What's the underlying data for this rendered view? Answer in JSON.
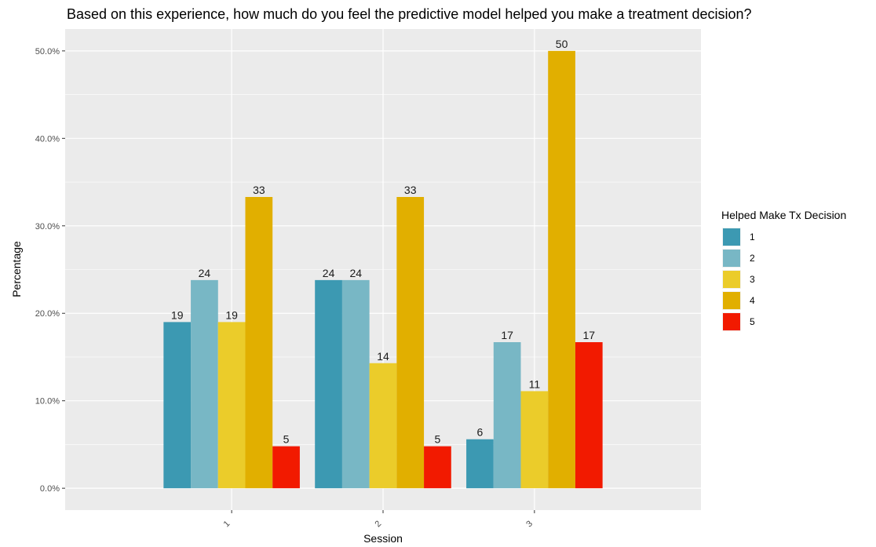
{
  "chart_data": {
    "type": "bar",
    "title": "Based on this experience, how much do you feel the predictive model helped you make a treatment decision?",
    "xlabel": "Session",
    "ylabel": "Percentage",
    "categories": [
      "1",
      "2",
      "3"
    ],
    "ylim": [
      -0.025,
      0.525
    ],
    "yticks": [
      0.0,
      0.1,
      0.2,
      0.3,
      0.4,
      0.5
    ],
    "ytick_labels": [
      "0.0%",
      "10.0%",
      "20.0%",
      "30.0%",
      "40.0%",
      "50.0%"
    ],
    "grid": true,
    "legend_title": "Helped Make Tx Decision",
    "legend_position": "right",
    "series": [
      {
        "name": "1",
        "color": "#3C99B2",
        "values": [
          0.19,
          0.238,
          0.056
        ],
        "labels": [
          "19",
          "24",
          "6"
        ]
      },
      {
        "name": "2",
        "color": "#78B7C5",
        "values": [
          0.238,
          0.238,
          0.167
        ],
        "labels": [
          "24",
          "24",
          "17"
        ]
      },
      {
        "name": "3",
        "color": "#EBCC2A",
        "values": [
          0.19,
          0.143,
          0.111
        ],
        "labels": [
          "19",
          "14",
          "11"
        ]
      },
      {
        "name": "4",
        "color": "#E1AF00",
        "values": [
          0.333,
          0.333,
          0.5
        ],
        "labels": [
          "33",
          "33",
          "50"
        ]
      },
      {
        "name": "5",
        "color": "#F21A00",
        "values": [
          0.048,
          0.048,
          0.167
        ],
        "labels": [
          "5",
          "5",
          "17"
        ]
      }
    ]
  }
}
